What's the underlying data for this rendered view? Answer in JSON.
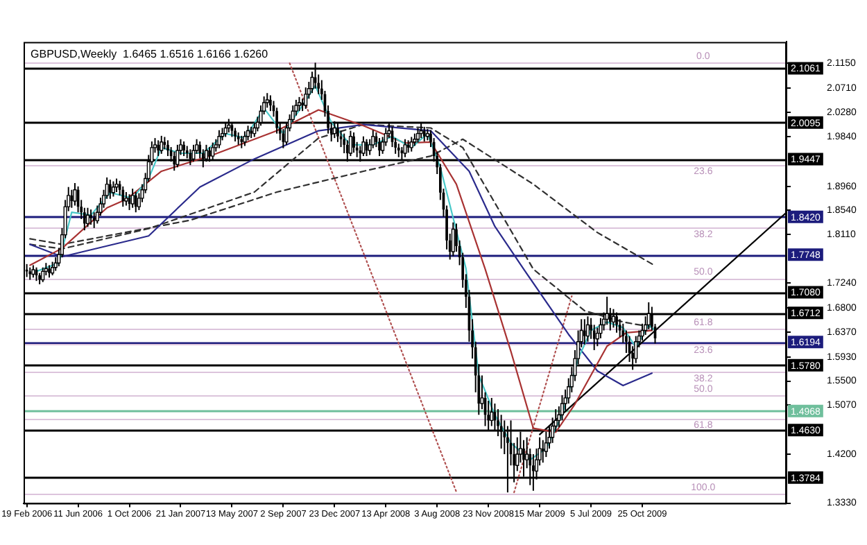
{
  "chart_data": {
    "type": "candlestick",
    "title": "GBPUSD,Weekly  1.6465 1.6516 1.6166 1.6260",
    "xlim": [
      "2006-02-12",
      "2010-09-05"
    ],
    "xticks": [
      {
        "value": "2006-02-19",
        "label": "19 Feb 2006"
      },
      {
        "value": "2006-06-11",
        "label": "11 Jun 2006"
      },
      {
        "value": "2006-10-01",
        "label": "1 Oct 2006"
      },
      {
        "value": "2007-01-21",
        "label": "21 Jan 2007"
      },
      {
        "value": "2007-05-13",
        "label": "13 May 2007"
      },
      {
        "value": "2007-09-02",
        "label": "2 Sep 2007"
      },
      {
        "value": "2007-12-23",
        "label": "23 Dec 2007"
      },
      {
        "value": "2008-04-13",
        "label": "13 Apr 2008"
      },
      {
        "value": "2008-08-03",
        "label": "3 Aug 2008"
      },
      {
        "value": "2008-11-23",
        "label": "23 Nov 2008"
      },
      {
        "value": "2009-03-15",
        "label": "15 Mar 2009"
      },
      {
        "value": "2009-07-05",
        "label": "5 Jul 2009"
      },
      {
        "value": "2009-10-25",
        "label": "25 Oct 2009"
      }
    ],
    "ylim": [
      1.333,
      2.153
    ],
    "yticks": [
      {
        "value": 2.115,
        "label": "2.1150"
      },
      {
        "value": 2.071,
        "label": "2.0710"
      },
      {
        "value": 2.028,
        "label": "2.0280"
      },
      {
        "value": 1.984,
        "label": "1.9840"
      },
      {
        "value": 1.896,
        "label": "1.8960"
      },
      {
        "value": 1.854,
        "label": "1.8540"
      },
      {
        "value": 1.811,
        "label": "1.8110"
      },
      {
        "value": 1.724,
        "label": "1.7240"
      },
      {
        "value": 1.68,
        "label": "1.6800"
      },
      {
        "value": 1.637,
        "label": "1.6370"
      },
      {
        "value": 1.593,
        "label": "1.5930"
      },
      {
        "value": 1.55,
        "label": "1.5500"
      },
      {
        "value": 1.507,
        "label": "1.5070"
      },
      {
        "value": 1.42,
        "label": "1.4200"
      },
      {
        "value": 1.333,
        "label": "1.3330"
      }
    ],
    "x": [
      "2006-02-19",
      "2006-02-26",
      "2006-03-05",
      "2006-03-12",
      "2006-03-19",
      "2006-03-26",
      "2006-04-02",
      "2006-04-09",
      "2006-04-16",
      "2006-04-23",
      "2006-04-30",
      "2006-05-07",
      "2006-05-14",
      "2006-05-21",
      "2006-05-28",
      "2006-06-04",
      "2006-06-11",
      "2006-06-18",
      "2006-06-25",
      "2006-07-02",
      "2006-07-09",
      "2006-07-16",
      "2006-07-23",
      "2006-07-30",
      "2006-08-06",
      "2006-08-13",
      "2006-08-20",
      "2006-08-27",
      "2006-09-03",
      "2006-09-10",
      "2006-09-17",
      "2006-09-24",
      "2006-10-01",
      "2006-10-08",
      "2006-10-15",
      "2006-10-22",
      "2006-10-29",
      "2006-11-05",
      "2006-11-12",
      "2006-11-19",
      "2006-11-26",
      "2006-12-03",
      "2006-12-10",
      "2006-12-17",
      "2006-12-24",
      "2006-12-31",
      "2007-01-07",
      "2007-01-14",
      "2007-01-21",
      "2007-01-28",
      "2007-02-04",
      "2007-02-11",
      "2007-02-18",
      "2007-02-25",
      "2007-03-04",
      "2007-03-11",
      "2007-03-18",
      "2007-03-25",
      "2007-04-01",
      "2007-04-08",
      "2007-04-15",
      "2007-04-22",
      "2007-04-29",
      "2007-05-06",
      "2007-05-13",
      "2007-05-20",
      "2007-05-27",
      "2007-06-03",
      "2007-06-10",
      "2007-06-17",
      "2007-06-24",
      "2007-07-01",
      "2007-07-08",
      "2007-07-15",
      "2007-07-22",
      "2007-07-29",
      "2007-08-05",
      "2007-08-12",
      "2007-08-19",
      "2007-08-26",
      "2007-09-02",
      "2007-09-09",
      "2007-09-16",
      "2007-09-23",
      "2007-09-30",
      "2007-10-07",
      "2007-10-14",
      "2007-10-21",
      "2007-10-28",
      "2007-11-04",
      "2007-11-11",
      "2007-11-18",
      "2007-11-25",
      "2007-12-02",
      "2007-12-09",
      "2007-12-16",
      "2007-12-23",
      "2007-12-30",
      "2008-01-06",
      "2008-01-13",
      "2008-01-20",
      "2008-01-27",
      "2008-02-03",
      "2008-02-10",
      "2008-02-17",
      "2008-02-24",
      "2008-03-02",
      "2008-03-09",
      "2008-03-16",
      "2008-03-23",
      "2008-03-30",
      "2008-04-06",
      "2008-04-13",
      "2008-04-20",
      "2008-04-27",
      "2008-05-04",
      "2008-05-11",
      "2008-05-18",
      "2008-05-25",
      "2008-06-01",
      "2008-06-08",
      "2008-06-15",
      "2008-06-22",
      "2008-06-29",
      "2008-07-06",
      "2008-07-13",
      "2008-07-20",
      "2008-07-27",
      "2008-08-03",
      "2008-08-10",
      "2008-08-17",
      "2008-08-24",
      "2008-08-31",
      "2008-09-07",
      "2008-09-14",
      "2008-09-21",
      "2008-09-28",
      "2008-10-05",
      "2008-10-12",
      "2008-10-19",
      "2008-10-26",
      "2008-11-02",
      "2008-11-09",
      "2008-11-16",
      "2008-11-23",
      "2008-11-30",
      "2008-12-07",
      "2008-12-14",
      "2008-12-21",
      "2008-12-28",
      "2009-01-04",
      "2009-01-11",
      "2009-01-18",
      "2009-01-25",
      "2009-02-01",
      "2009-02-08",
      "2009-02-15",
      "2009-02-22",
      "2009-03-01",
      "2009-03-08",
      "2009-03-15",
      "2009-03-22",
      "2009-03-29",
      "2009-04-05",
      "2009-04-12",
      "2009-04-19",
      "2009-04-26",
      "2009-05-03",
      "2009-05-10",
      "2009-05-17",
      "2009-05-24",
      "2009-05-31",
      "2009-06-07",
      "2009-06-14",
      "2009-06-21",
      "2009-06-28",
      "2009-07-05",
      "2009-07-12",
      "2009-07-19",
      "2009-07-26",
      "2009-08-02",
      "2009-08-09",
      "2009-08-16",
      "2009-08-23",
      "2009-08-30",
      "2009-09-06",
      "2009-09-13",
      "2009-09-20",
      "2009-09-27",
      "2009-10-04",
      "2009-10-11",
      "2009-10-18",
      "2009-10-25",
      "2009-11-01",
      "2009-11-08",
      "2009-11-15",
      "2009-11-22"
    ],
    "ohlc": [
      [
        1.748,
        1.758,
        1.735,
        1.745
      ],
      [
        1.745,
        1.752,
        1.73,
        1.74
      ],
      [
        1.74,
        1.756,
        1.734,
        1.748
      ],
      [
        1.748,
        1.752,
        1.728,
        1.738
      ],
      [
        1.738,
        1.742,
        1.722,
        1.73
      ],
      [
        1.73,
        1.752,
        1.726,
        1.745
      ],
      [
        1.745,
        1.76,
        1.738,
        1.75
      ],
      [
        1.75,
        1.756,
        1.734,
        1.742
      ],
      [
        1.742,
        1.762,
        1.738,
        1.752
      ],
      [
        1.752,
        1.77,
        1.746,
        1.76
      ],
      [
        1.76,
        1.786,
        1.754,
        1.775
      ],
      [
        1.775,
        1.822,
        1.77,
        1.81
      ],
      [
        1.81,
        1.872,
        1.804,
        1.86
      ],
      [
        1.86,
        1.895,
        1.852,
        1.88
      ],
      [
        1.88,
        1.89,
        1.858,
        1.87
      ],
      [
        1.87,
        1.902,
        1.862,
        1.89
      ],
      [
        1.89,
        1.896,
        1.85,
        1.86
      ],
      [
        1.86,
        1.872,
        1.838,
        1.85
      ],
      [
        1.85,
        1.858,
        1.818,
        1.83
      ],
      [
        1.83,
        1.858,
        1.824,
        1.845
      ],
      [
        1.845,
        1.855,
        1.828,
        1.84
      ],
      [
        1.84,
        1.85,
        1.822,
        1.835
      ],
      [
        1.835,
        1.862,
        1.83,
        1.85
      ],
      [
        1.85,
        1.876,
        1.844,
        1.865
      ],
      [
        1.865,
        1.89,
        1.858,
        1.88
      ],
      [
        1.88,
        1.912,
        1.874,
        1.9
      ],
      [
        1.9,
        1.908,
        1.874,
        1.885
      ],
      [
        1.885,
        1.905,
        1.878,
        1.895
      ],
      [
        1.895,
        1.91,
        1.886,
        1.9
      ],
      [
        1.9,
        1.906,
        1.88,
        1.89
      ],
      [
        1.89,
        1.896,
        1.86,
        1.87
      ],
      [
        1.87,
        1.886,
        1.862,
        1.875
      ],
      [
        1.875,
        1.882,
        1.854,
        1.865
      ],
      [
        1.865,
        1.892,
        1.858,
        1.88
      ],
      [
        1.88,
        1.886,
        1.85,
        1.86
      ],
      [
        1.86,
        1.884,
        1.854,
        1.875
      ],
      [
        1.875,
        1.9,
        1.868,
        1.89
      ],
      [
        1.89,
        1.92,
        1.884,
        1.91
      ],
      [
        1.91,
        1.952,
        1.904,
        1.94
      ],
      [
        1.94,
        1.976,
        1.934,
        1.965
      ],
      [
        1.965,
        1.982,
        1.956,
        1.97
      ],
      [
        1.97,
        1.978,
        1.95,
        1.96
      ],
      [
        1.96,
        1.986,
        1.954,
        1.975
      ],
      [
        1.975,
        1.984,
        1.962,
        1.97
      ],
      [
        1.97,
        1.978,
        1.95,
        1.96
      ],
      [
        1.96,
        1.966,
        1.94,
        1.95
      ],
      [
        1.95,
        1.958,
        1.924,
        1.935
      ],
      [
        1.935,
        1.97,
        1.93,
        1.96
      ],
      [
        1.96,
        1.98,
        1.952,
        1.97
      ],
      [
        1.97,
        1.976,
        1.95,
        1.96
      ],
      [
        1.96,
        1.968,
        1.946,
        1.955
      ],
      [
        1.955,
        1.962,
        1.934,
        1.945
      ],
      [
        1.945,
        1.97,
        1.94,
        1.96
      ],
      [
        1.96,
        1.98,
        1.954,
        1.97
      ],
      [
        1.97,
        1.976,
        1.946,
        1.955
      ],
      [
        1.955,
        1.962,
        1.93,
        1.945
      ],
      [
        1.945,
        1.97,
        1.94,
        1.96
      ],
      [
        1.96,
        1.966,
        1.94,
        1.95
      ],
      [
        1.95,
        1.974,
        1.944,
        1.965
      ],
      [
        1.965,
        1.98,
        1.958,
        1.97
      ],
      [
        1.97,
        1.996,
        1.964,
        1.985
      ],
      [
        1.985,
        2.0,
        1.978,
        1.99
      ],
      [
        1.99,
        2.01,
        1.984,
        2.0
      ],
      [
        2.0,
        2.016,
        1.992,
        2.005
      ],
      [
        2.005,
        2.01,
        1.984,
        1.995
      ],
      [
        1.995,
        2.0,
        1.976,
        1.985
      ],
      [
        1.985,
        1.992,
        1.97,
        1.98
      ],
      [
        1.98,
        1.986,
        1.964,
        1.975
      ],
      [
        1.975,
        1.994,
        1.968,
        1.985
      ],
      [
        1.985,
        2.004,
        1.978,
        1.995
      ],
      [
        1.995,
        2.002,
        1.982,
        1.99
      ],
      [
        1.99,
        2.01,
        1.984,
        2.0
      ],
      [
        2.0,
        2.02,
        1.994,
        2.01
      ],
      [
        2.01,
        2.04,
        2.004,
        2.03
      ],
      [
        2.03,
        2.056,
        2.024,
        2.045
      ],
      [
        2.045,
        2.062,
        2.036,
        2.05
      ],
      [
        2.05,
        2.058,
        2.03,
        2.04
      ],
      [
        2.04,
        2.048,
        2.02,
        2.03
      ],
      [
        2.03,
        2.036,
        1.99,
        2.0
      ],
      [
        2.0,
        2.01,
        1.978,
        1.99
      ],
      [
        1.99,
        1.998,
        1.964,
        1.975
      ],
      [
        1.975,
        2.01,
        1.97,
        2.0
      ],
      [
        2.0,
        2.024,
        1.994,
        2.015
      ],
      [
        2.015,
        2.04,
        2.01,
        2.03
      ],
      [
        2.03,
        2.05,
        2.022,
        2.04
      ],
      [
        2.04,
        2.055,
        2.03,
        2.045
      ],
      [
        2.045,
        2.052,
        2.03,
        2.04
      ],
      [
        2.04,
        2.072,
        2.034,
        2.06
      ],
      [
        2.06,
        2.082,
        2.052,
        2.07
      ],
      [
        2.07,
        2.1,
        2.062,
        2.09
      ],
      [
        2.09,
        2.116,
        2.07,
        2.08
      ],
      [
        2.08,
        2.095,
        2.06,
        2.07
      ],
      [
        2.07,
        2.085,
        2.05,
        2.06
      ],
      [
        2.06,
        2.066,
        2.02,
        2.03
      ],
      [
        2.03,
        2.04,
        1.99,
        2.0
      ],
      [
        2.0,
        2.01,
        1.976,
        1.99
      ],
      [
        1.99,
        2.012,
        1.982,
        2.0
      ],
      [
        2.0,
        2.008,
        1.975,
        1.985
      ],
      [
        1.985,
        1.995,
        1.966,
        1.98
      ],
      [
        1.98,
        1.99,
        1.955,
        1.97
      ],
      [
        1.97,
        1.978,
        1.94,
        1.955
      ],
      [
        1.955,
        1.995,
        1.95,
        1.985
      ],
      [
        1.985,
        1.992,
        1.956,
        1.965
      ],
      [
        1.965,
        1.975,
        1.948,
        1.96
      ],
      [
        1.96,
        1.968,
        1.94,
        1.955
      ],
      [
        1.955,
        1.985,
        1.95,
        1.975
      ],
      [
        1.975,
        1.98,
        1.95,
        1.96
      ],
      [
        1.96,
        1.98,
        1.952,
        1.97
      ],
      [
        1.97,
        1.996,
        1.964,
        1.985
      ],
      [
        1.985,
        1.992,
        1.966,
        1.975
      ],
      [
        1.975,
        1.982,
        1.95,
        1.96
      ],
      [
        1.96,
        1.984,
        1.954,
        1.975
      ],
      [
        1.975,
        2.0,
        1.968,
        1.99
      ],
      [
        1.99,
        2.008,
        1.982,
        1.995
      ],
      [
        1.995,
        2.002,
        1.966,
        1.975
      ],
      [
        1.975,
        1.982,
        1.954,
        1.965
      ],
      [
        1.965,
        1.972,
        1.948,
        1.96
      ],
      [
        1.96,
        1.966,
        1.942,
        1.955
      ],
      [
        1.955,
        1.98,
        1.948,
        1.97
      ],
      [
        1.97,
        1.978,
        1.956,
        1.965
      ],
      [
        1.965,
        1.984,
        1.958,
        1.975
      ],
      [
        1.975,
        1.99,
        1.968,
        1.98
      ],
      [
        1.98,
        2.0,
        1.974,
        1.99
      ],
      [
        1.99,
        2.01,
        1.982,
        1.995
      ],
      [
        1.995,
        2.002,
        1.976,
        1.985
      ],
      [
        1.985,
        1.998,
        1.978,
        1.99
      ],
      [
        1.99,
        1.996,
        1.966,
        1.975
      ],
      [
        1.975,
        1.982,
        1.94,
        1.95
      ],
      [
        1.95,
        1.958,
        1.918,
        1.93
      ],
      [
        1.93,
        1.936,
        1.872,
        1.885
      ],
      [
        1.885,
        1.892,
        1.842,
        1.855
      ],
      [
        1.855,
        1.862,
        1.784,
        1.8
      ],
      [
        1.8,
        1.812,
        1.766,
        1.78
      ],
      [
        1.78,
        1.832,
        1.772,
        1.82
      ],
      [
        1.82,
        1.83,
        1.78,
        1.79
      ],
      [
        1.79,
        1.8,
        1.756,
        1.77
      ],
      [
        1.77,
        1.778,
        1.716,
        1.73
      ],
      [
        1.73,
        1.74,
        1.68,
        1.7
      ],
      [
        1.7,
        1.712,
        1.62,
        1.64
      ],
      [
        1.64,
        1.66,
        1.59,
        1.61
      ],
      [
        1.61,
        1.62,
        1.53,
        1.56
      ],
      [
        1.56,
        1.58,
        1.49,
        1.51
      ],
      [
        1.51,
        1.56,
        1.5,
        1.52
      ],
      [
        1.52,
        1.53,
        1.47,
        1.49
      ],
      [
        1.49,
        1.515,
        1.462,
        1.48
      ],
      [
        1.48,
        1.52,
        1.47,
        1.495
      ],
      [
        1.495,
        1.51,
        1.462,
        1.48
      ],
      [
        1.48,
        1.5,
        1.452,
        1.47
      ],
      [
        1.47,
        1.49,
        1.43,
        1.46
      ],
      [
        1.46,
        1.48,
        1.42,
        1.45
      ],
      [
        1.45,
        1.47,
        1.352,
        1.44
      ],
      [
        1.44,
        1.48,
        1.4,
        1.42
      ],
      [
        1.42,
        1.44,
        1.37,
        1.4
      ],
      [
        1.4,
        1.45,
        1.39,
        1.42
      ],
      [
        1.42,
        1.46,
        1.405,
        1.43
      ],
      [
        1.43,
        1.445,
        1.38,
        1.41
      ],
      [
        1.41,
        1.45,
        1.395,
        1.42
      ],
      [
        1.42,
        1.43,
        1.365,
        1.4
      ],
      [
        1.4,
        1.42,
        1.355,
        1.39
      ],
      [
        1.39,
        1.43,
        1.375,
        1.41
      ],
      [
        1.41,
        1.45,
        1.4,
        1.43
      ],
      [
        1.43,
        1.445,
        1.405,
        1.425
      ],
      [
        1.425,
        1.46,
        1.415,
        1.44
      ],
      [
        1.44,
        1.47,
        1.43,
        1.45
      ],
      [
        1.45,
        1.485,
        1.44,
        1.47
      ],
      [
        1.47,
        1.5,
        1.46,
        1.48
      ],
      [
        1.48,
        1.505,
        1.468,
        1.49
      ],
      [
        1.49,
        1.525,
        1.48,
        1.51
      ],
      [
        1.51,
        1.535,
        1.498,
        1.52
      ],
      [
        1.52,
        1.555,
        1.51,
        1.54
      ],
      [
        1.54,
        1.575,
        1.53,
        1.56
      ],
      [
        1.56,
        1.605,
        1.55,
        1.59
      ],
      [
        1.59,
        1.64,
        1.58,
        1.62
      ],
      [
        1.62,
        1.66,
        1.61,
        1.64
      ],
      [
        1.64,
        1.66,
        1.615,
        1.63
      ],
      [
        1.63,
        1.665,
        1.62,
        1.65
      ],
      [
        1.65,
        1.662,
        1.625,
        1.64
      ],
      [
        1.64,
        1.65,
        1.605,
        1.625
      ],
      [
        1.625,
        1.645,
        1.612,
        1.635
      ],
      [
        1.635,
        1.662,
        1.626,
        1.65
      ],
      [
        1.65,
        1.672,
        1.64,
        1.66
      ],
      [
        1.66,
        1.7,
        1.65,
        1.67
      ],
      [
        1.67,
        1.68,
        1.64,
        1.655
      ],
      [
        1.655,
        1.678,
        1.645,
        1.665
      ],
      [
        1.665,
        1.672,
        1.636,
        1.65
      ],
      [
        1.65,
        1.66,
        1.628,
        1.64
      ],
      [
        1.64,
        1.652,
        1.618,
        1.63
      ],
      [
        1.63,
        1.64,
        1.6,
        1.62
      ],
      [
        1.62,
        1.63,
        1.584,
        1.6
      ],
      [
        1.6,
        1.612,
        1.57,
        1.59
      ],
      [
        1.59,
        1.63,
        1.582,
        1.62
      ],
      [
        1.62,
        1.64,
        1.61,
        1.63
      ],
      [
        1.63,
        1.652,
        1.622,
        1.64
      ],
      [
        1.64,
        1.665,
        1.632,
        1.65
      ],
      [
        1.65,
        1.69,
        1.642,
        1.67
      ],
      [
        1.67,
        1.682,
        1.64,
        1.6465
      ],
      [
        1.6465,
        1.6516,
        1.6166,
        1.626
      ]
    ],
    "series": [
      {
        "type": "line",
        "color": "#48c8c8",
        "line_style": "solid",
        "x": [
          "2006-03-12",
          "2006-04-30",
          "2006-05-28",
          "2006-07-09",
          "2006-08-20",
          "2006-10-08",
          "2006-11-12",
          "2006-12-10",
          "2007-01-21",
          "2007-03-11",
          "2007-04-29",
          "2007-06-10",
          "2007-07-22",
          "2007-09-02",
          "2007-10-14",
          "2007-11-11",
          "2007-12-16",
          "2008-01-27",
          "2008-03-16",
          "2008-04-27",
          "2008-06-08",
          "2008-07-13",
          "2008-08-10",
          "2008-10-05",
          "2008-11-02",
          "2008-12-07",
          "2009-01-11",
          "2009-02-22",
          "2009-03-29",
          "2009-05-03",
          "2009-06-07",
          "2009-07-05",
          "2009-08-09",
          "2009-09-13",
          "2009-10-11",
          "2009-11-08",
          "2009-11-22"
        ],
        "values": [
          1.745,
          1.76,
          1.85,
          1.845,
          1.885,
          1.875,
          1.91,
          1.965,
          1.955,
          1.955,
          1.99,
          1.982,
          2.035,
          1.99,
          2.04,
          2.075,
          2.01,
          1.97,
          1.97,
          1.985,
          1.965,
          1.99,
          1.93,
          1.75,
          1.56,
          1.49,
          1.44,
          1.41,
          1.43,
          1.49,
          1.59,
          1.64,
          1.655,
          1.645,
          1.61,
          1.65,
          1.64
        ]
      },
      {
        "type": "line",
        "color": "#a83232",
        "line_style": "solid",
        "x": [
          "2006-02-26",
          "2006-05-07",
          "2006-08-13",
          "2006-09-24",
          "2006-12-10",
          "2007-04-01",
          "2007-05-20",
          "2007-08-19",
          "2007-11-18",
          "2008-02-24",
          "2008-05-25",
          "2008-07-20",
          "2008-09-14",
          "2008-11-16",
          "2009-01-11",
          "2009-03-01",
          "2009-04-19",
          "2009-05-31",
          "2009-08-09",
          "2009-09-20",
          "2009-11-15"
        ],
        "values": [
          1.756,
          1.786,
          1.858,
          1.873,
          1.923,
          1.952,
          1.967,
          1.995,
          2.032,
          2.004,
          1.973,
          1.975,
          1.9,
          1.749,
          1.603,
          1.466,
          1.459,
          1.509,
          1.612,
          1.636,
          1.64
        ]
      },
      {
        "type": "line",
        "color": "#2a2a8c",
        "line_style": "solid",
        "x": [
          "2006-02-26",
          "2006-05-07",
          "2006-11-12",
          "2007-03-04",
          "2007-07-01",
          "2007-11-18",
          "2008-02-24",
          "2008-07-20",
          "2008-10-12",
          "2008-12-07",
          "2009-02-08",
          "2009-05-17",
          "2009-07-19",
          "2009-09-13",
          "2009-11-15"
        ],
        "values": [
          1.793,
          1.771,
          1.808,
          1.895,
          1.945,
          1.995,
          2.006,
          1.995,
          1.923,
          1.825,
          1.749,
          1.633,
          1.568,
          1.542,
          1.564
        ]
      },
      {
        "type": "line",
        "color": "#303030",
        "line_style": "dashed",
        "x": [
          "2006-02-26",
          "2006-05-07",
          "2007-02-11",
          "2007-08-19",
          "2008-02-24",
          "2008-07-20",
          "2008-09-28",
          "2009-03-01",
          "2009-07-19",
          "2009-11-22"
        ],
        "values": [
          1.803,
          1.793,
          1.836,
          1.886,
          1.923,
          1.95,
          1.98,
          1.9,
          1.814,
          1.755
        ]
      },
      {
        "type": "line",
        "color": "#303030",
        "line_style": "dashed",
        "x": [
          "2006-02-26",
          "2006-05-07",
          "2006-11-12",
          "2007-07-01",
          "2007-11-18",
          "2008-02-24",
          "2008-07-20",
          "2008-09-28",
          "2009-03-01",
          "2009-06-21",
          "2009-09-13",
          "2009-11-22"
        ],
        "values": [
          1.793,
          1.785,
          1.821,
          1.886,
          1.982,
          2.006,
          2.0,
          1.965,
          1.749,
          1.675,
          1.655,
          1.645
        ]
      },
      {
        "type": "line",
        "color": "#000000",
        "line_style": "solid",
        "x": [
          "2009-03-15",
          "2010-09-05"
        ],
        "values": [
          1.455,
          1.85
        ]
      },
      {
        "type": "line",
        "color": "#b05050",
        "line_style": "dotted",
        "x": [
          "2007-09-16",
          "2008-09-14"
        ],
        "values": [
          2.115,
          1.353
        ]
      },
      {
        "type": "line",
        "color": "#b05050",
        "line_style": "dotted",
        "x": [
          "2009-01-18",
          "2009-05-24"
        ],
        "values": [
          1.352,
          1.701
        ]
      }
    ],
    "ref_lines": [
      {
        "axis": "y",
        "value": 2.1061,
        "label": "2.1061",
        "color": "#000000"
      },
      {
        "axis": "y",
        "value": 2.0095,
        "label": "2.0095",
        "color": "#000000"
      },
      {
        "axis": "y",
        "value": 1.9447,
        "label": "1.9447",
        "color": "#000000"
      },
      {
        "axis": "y",
        "value": 1.842,
        "label": "1.8420",
        "color": "#1c1c7c"
      },
      {
        "axis": "y",
        "value": 1.7748,
        "label": "1.7748",
        "color": "#1c1c7c"
      },
      {
        "axis": "y",
        "value": 1.708,
        "label": "1.7080",
        "color": "#000000"
      },
      {
        "axis": "y",
        "value": 1.6712,
        "label": "1.6712",
        "color": "#000000"
      },
      {
        "axis": "y",
        "value": 1.6194,
        "label": "1.6194",
        "color": "#1c1c7c"
      },
      {
        "axis": "y",
        "value": 1.578,
        "label": "1.5780",
        "color": "#000000"
      },
      {
        "axis": "y",
        "value": 1.4968,
        "label": "1.4968",
        "color": "#6fbf9c"
      },
      {
        "axis": "y",
        "value": 1.463,
        "label": "1.4630",
        "color": "#000000"
      },
      {
        "axis": "y",
        "value": 1.3784,
        "label": "1.3784",
        "color": "#000000"
      },
      {
        "axis": "y",
        "value": 2.116,
        "color": "#dcc4dc"
      },
      {
        "axis": "y",
        "value": 1.935,
        "color": "#dcc4dc"
      },
      {
        "axis": "y",
        "value": 1.823,
        "color": "#dcc4dc"
      },
      {
        "axis": "y",
        "value": 1.733,
        "color": "#dcc4dc"
      },
      {
        "axis": "y",
        "value": 1.643,
        "color": "#dcc4dc"
      },
      {
        "axis": "y",
        "value": 1.35,
        "color": "#dcc4dc"
      },
      {
        "axis": "y",
        "value": 1.617,
        "color": "#dcc4dc"
      },
      {
        "axis": "y",
        "value": 1.566,
        "color": "#dcc4dc"
      },
      {
        "axis": "y",
        "value": 1.525,
        "color": "#dcc4dc"
      },
      {
        "axis": "y",
        "value": 1.484,
        "color": "#dcc4dc"
      }
    ],
    "annotations": [
      {
        "text": "0.0",
        "x": "2010-03-07",
        "y": 2.116
      },
      {
        "text": "23.6",
        "x": "2010-03-07",
        "y": 1.935
      },
      {
        "text": "38.2",
        "x": "2010-03-07",
        "y": 1.823
      },
      {
        "text": "50.0",
        "x": "2010-03-07",
        "y": 1.733
      },
      {
        "text": "61.8",
        "x": "2010-03-07",
        "y": 1.643
      },
      {
        "text": "23.6",
        "x": "2010-03-07",
        "y": 1.617
      },
      {
        "text": "38.2",
        "x": "2010-03-07",
        "y": 1.566
      },
      {
        "text": "50.0",
        "x": "2010-03-07",
        "y": 1.525
      },
      {
        "text": "61.8",
        "x": "2010-03-07",
        "y": 1.484
      },
      {
        "text": "100.0",
        "x": "2010-03-07",
        "y": 1.35
      }
    ]
  }
}
